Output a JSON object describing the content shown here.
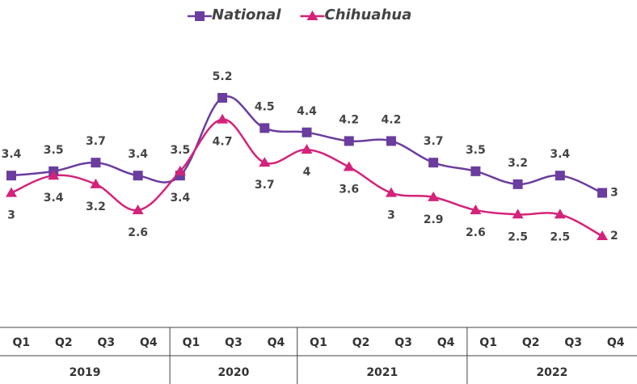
{
  "chart_data": {
    "type": "line",
    "category_groups": [
      {
        "name": "2019",
        "categories": [
          "Q1",
          "Q2",
          "Q3",
          "Q4"
        ]
      },
      {
        "name": "2020",
        "categories": [
          "Q1",
          "Q3",
          "Q4"
        ]
      },
      {
        "name": "2021",
        "categories": [
          "Q1",
          "Q2",
          "Q3",
          "Q4"
        ]
      },
      {
        "name": "2022",
        "categories": [
          "Q1",
          "Q2",
          "Q3",
          "Q4"
        ]
      }
    ],
    "series": [
      {
        "name": "National",
        "color": "#6a3d9e",
        "marker": "square",
        "values": [
          3.4,
          3.5,
          3.7,
          3.4,
          3.4,
          5.2,
          4.5,
          4.4,
          4.2,
          4.2,
          3.7,
          3.5,
          3.2,
          3.4,
          3.0
        ]
      },
      {
        "name": "Chihuahua",
        "color": "#d4237a",
        "marker": "triangle",
        "values": [
          3.0,
          3.4,
          3.2,
          2.6,
          3.5,
          4.7,
          3.7,
          4.0,
          3.6,
          3.0,
          2.9,
          2.6,
          2.5,
          2.5,
          2.0
        ]
      }
    ],
    "legend": "top"
  }
}
